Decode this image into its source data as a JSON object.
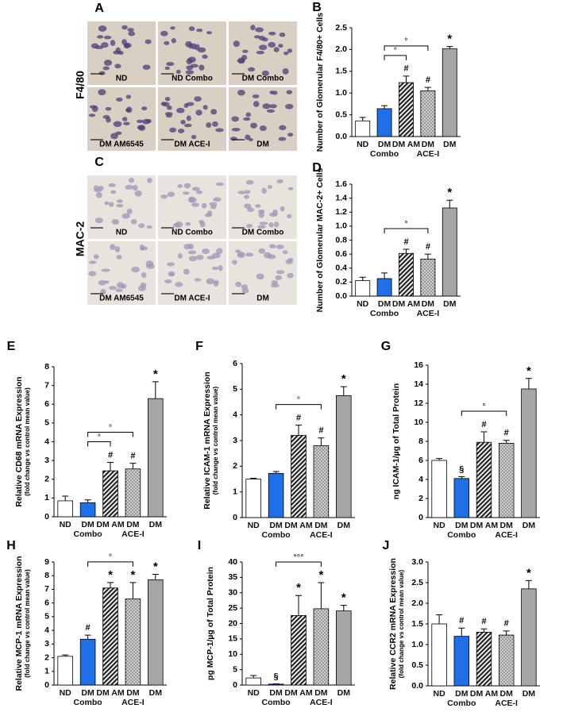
{
  "micrographs": [
    {
      "letter": "A",
      "stain": "F4/80",
      "labels": [
        "ND",
        "ND Combo",
        "DM Combo",
        "DM AM6545",
        "DM ACE-I",
        "DM"
      ]
    },
    {
      "letter": "C",
      "stain": "MAC-2",
      "labels": [
        "ND",
        "ND Combo",
        "DM Combo",
        "DM AM6545",
        "DM ACE-I",
        "DM"
      ]
    }
  ],
  "chart_data": [
    {
      "type": "bar",
      "letter": "B",
      "ylabel": "Number of Glomerular F4/80+ Cells",
      "categories": [
        "ND",
        "DM Combo",
        "DM AM",
        "DM ACE-I",
        "DM"
      ],
      "values": [
        0.36,
        0.64,
        1.24,
        1.05,
        2.02
      ],
      "errors": [
        0.08,
        0.07,
        0.15,
        0.08,
        0.05
      ],
      "fills": [
        "#ffffff",
        "#1f6fe8",
        "diagonal-hatch",
        "dots",
        "#a6a6a6"
      ],
      "markers": [
        null,
        null,
        "#",
        "#",
        "*"
      ],
      "brackets": [
        {
          "from": "DM Combo",
          "to": "DM AM",
          "label": "°"
        },
        {
          "from": "DM Combo",
          "to": "DM ACE-I",
          "label": "°"
        }
      ],
      "ylim": [
        0,
        2.5
      ],
      "yticks": [
        {
          "value": 0,
          "label": "0.0"
        },
        {
          "value": 0.5,
          "label": "0.5"
        },
        {
          "value": 1,
          "label": "1.0"
        },
        {
          "value": 1.5,
          "label": "1.5"
        },
        {
          "value": 2,
          "label": "2.0"
        },
        {
          "value": 2.5,
          "label": "2.5"
        }
      ]
    },
    {
      "type": "bar",
      "letter": "D",
      "ylabel": "Number of Glomerular MAC-2+ Cells",
      "categories": [
        "ND",
        "DM Combo",
        "DM AM",
        "DM ACE-I",
        "DM"
      ],
      "values": [
        0.22,
        0.25,
        0.61,
        0.53,
        1.26
      ],
      "errors": [
        0.05,
        0.08,
        0.06,
        0.07,
        0.11
      ],
      "fills": [
        "#ffffff",
        "#1f6fe8",
        "diagonal-hatch",
        "dots",
        "#a6a6a6"
      ],
      "markers": [
        null,
        null,
        "#",
        "#",
        "*"
      ],
      "brackets": [
        {
          "from": "DM Combo",
          "to": "DM ACE-I",
          "label": "°"
        }
      ],
      "ylim": [
        0,
        1.6
      ],
      "yticks": [
        {
          "value": 0,
          "label": "0.0"
        },
        {
          "value": 0.2,
          "label": "0.2"
        },
        {
          "value": 0.4,
          "label": "0.4"
        },
        {
          "value": 0.6,
          "label": "0.6"
        },
        {
          "value": 0.8,
          "label": "0.8"
        },
        {
          "value": 1,
          "label": "1.0"
        },
        {
          "value": 1.2,
          "label": "1.2"
        },
        {
          "value": 1.4,
          "label": "1.4"
        },
        {
          "value": 1.6,
          "label": "1.6"
        }
      ]
    },
    {
      "type": "bar",
      "letter": "E",
      "ylabel": "Relative CD68 mRNA Expression",
      "ylabel_sub": "(fold change vs control mean value)",
      "categories": [
        "ND",
        "DM Combo",
        "DM AM",
        "DM ACE-I",
        "DM"
      ],
      "values": [
        0.85,
        0.75,
        2.45,
        2.55,
        6.3
      ],
      "errors": [
        0.25,
        0.15,
        0.45,
        0.3,
        0.9
      ],
      "fills": [
        "#ffffff",
        "#1f6fe8",
        "diagonal-hatch",
        "dots",
        "#a6a6a6"
      ],
      "markers": [
        null,
        null,
        "#",
        "#",
        "*"
      ],
      "brackets": [
        {
          "from": "DM Combo",
          "to": "DM AM",
          "label": "°"
        },
        {
          "from": "DM Combo",
          "to": "DM ACE-I",
          "label": "°"
        }
      ],
      "ylim": [
        0,
        8
      ],
      "yticks": [
        0,
        1,
        2,
        3,
        4,
        5,
        6,
        7,
        8
      ]
    },
    {
      "type": "bar",
      "letter": "F",
      "ylabel": "Relative ICAM-1 mRNA Expression",
      "ylabel_sub": "(fold change vs control mean value)",
      "categories": [
        "ND",
        "DM Combo",
        "DM AM",
        "DM ACE-I",
        "DM"
      ],
      "values": [
        1.5,
        1.72,
        3.2,
        2.8,
        4.75
      ],
      "errors": [
        0.03,
        0.07,
        0.4,
        0.3,
        0.35
      ],
      "fills": [
        "#ffffff",
        "#1f6fe8",
        "diagonal-hatch",
        "dots",
        "#a6a6a6"
      ],
      "markers": [
        null,
        null,
        "#",
        "#",
        "*"
      ],
      "brackets": [
        {
          "from": "DM Combo",
          "to": "DM ACE-I",
          "label": "°"
        }
      ],
      "ylim": [
        0,
        6
      ],
      "yticks": [
        0,
        1,
        2,
        3,
        4,
        5,
        6
      ]
    },
    {
      "type": "bar",
      "letter": "G",
      "ylabel": "ng ICAM-1/µg of Total Protein",
      "categories": [
        "ND",
        "DM Combo",
        "DM AM",
        "DM ACE-I",
        "DM"
      ],
      "values": [
        6.0,
        4.1,
        7.9,
        7.8,
        13.5
      ],
      "errors": [
        0.2,
        0.2,
        1.1,
        0.3,
        1.1
      ],
      "fills": [
        "#ffffff",
        "#1f6fe8",
        "diagonal-hatch",
        "dots",
        "#a6a6a6"
      ],
      "markers": [
        null,
        "§",
        "#",
        "#",
        "*"
      ],
      "brackets": [
        {
          "from": "DM Combo",
          "to": "DM ACE-I",
          "label": "°"
        }
      ],
      "ylim": [
        0,
        16
      ],
      "yticks": [
        0,
        2,
        4,
        6,
        8,
        10,
        12,
        14,
        16
      ]
    },
    {
      "type": "bar",
      "letter": "H",
      "ylabel": "Relative MCP-1 mRNA Expression",
      "ylabel_sub": "(fold change vs control mean value)",
      "categories": [
        "ND",
        "DM Combo",
        "DM AM",
        "DM ACE-I",
        "DM"
      ],
      "values": [
        2.1,
        3.35,
        7.1,
        6.3,
        7.7
      ],
      "errors": [
        0.1,
        0.3,
        0.4,
        1.2,
        0.4
      ],
      "fills": [
        "#ffffff",
        "#1f6fe8",
        "diagonal-hatch",
        "dots",
        "#a6a6a6"
      ],
      "markers": [
        null,
        "#",
        "*",
        "*",
        "*"
      ],
      "brackets": [
        {
          "from": "DM Combo",
          "to": "DM ACE-I",
          "label": "°"
        }
      ],
      "ylim": [
        0,
        9
      ],
      "yticks": [
        0,
        1,
        2,
        3,
        4,
        5,
        6,
        7,
        8,
        9
      ]
    },
    {
      "type": "bar",
      "letter": "I",
      "ylabel": "pg MCP-1/µg of Total Protein",
      "categories": [
        "ND",
        "DM Combo",
        "DM AM",
        "DM ACE-I",
        "DM"
      ],
      "values": [
        2.3,
        0.3,
        22.6,
        24.8,
        24.1
      ],
      "errors": [
        0.8,
        0.1,
        6.5,
        8.5,
        1.8
      ],
      "fills": [
        "#ffffff",
        "#1f6fe8",
        "diagonal-hatch",
        "dots",
        "#a6a6a6"
      ],
      "markers": [
        null,
        "§",
        "*",
        "*",
        "*"
      ],
      "brackets": [
        {
          "from": "DM Combo",
          "to": "DM ACE-I",
          "label": "°°°"
        }
      ],
      "ylim": [
        0,
        40
      ],
      "yticks": [
        0,
        5,
        10,
        15,
        20,
        25,
        30,
        35,
        40
      ]
    },
    {
      "type": "bar",
      "letter": "J",
      "ylabel": "Relative CCR2 mRNA Expression",
      "ylabel_sub": "(fold change vs control mean value)",
      "categories": [
        "ND",
        "DM Combo",
        "DM AM",
        "DM ACE-I",
        "DM"
      ],
      "values": [
        1.5,
        1.2,
        1.3,
        1.23,
        2.35
      ],
      "errors": [
        0.22,
        0.2,
        0.08,
        0.1,
        0.2
      ],
      "fills": [
        "#ffffff",
        "#1f6fe8",
        "diagonal-hatch",
        "dots",
        "#a6a6a6"
      ],
      "markers": [
        null,
        "#",
        "#",
        "#",
        "*"
      ],
      "brackets": [],
      "ylim": [
        0,
        3
      ],
      "yticks": [
        {
          "value": 0,
          "label": "0.0"
        },
        {
          "value": 0.5,
          "label": "0.5"
        },
        {
          "value": 1,
          "label": "1.0"
        },
        {
          "value": 1.5,
          "label": "1.5"
        },
        {
          "value": 2,
          "label": "2.0"
        },
        {
          "value": 2.5,
          "label": "2.5"
        },
        {
          "value": 3,
          "label": "3.0"
        }
      ]
    }
  ]
}
